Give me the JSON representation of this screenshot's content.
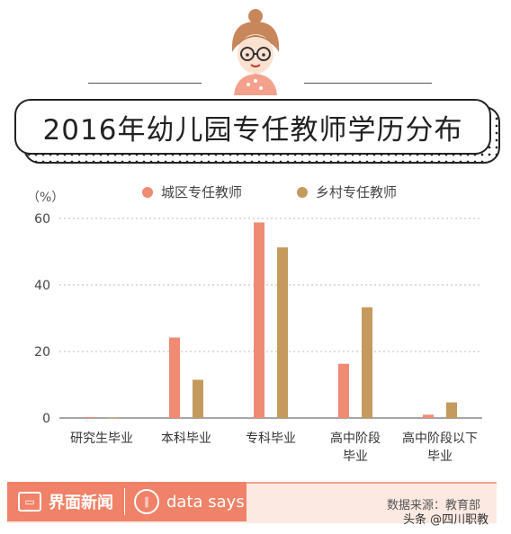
{
  "title": "2016年幼儿园专任教师学历分布",
  "footer": {
    "brand": "界面新闻",
    "data_says": "data says",
    "source": "数据来源：教育部",
    "watermark": "头条 @四川职教"
  },
  "colors": {
    "urban": "#ef8a73",
    "rural": "#c49a5e",
    "brand": "#ef8268"
  },
  "chart_data": {
    "type": "bar",
    "title": "2016年幼儿园专任教师学历分布",
    "ylabel": "（%）",
    "ylim": [
      0,
      60
    ],
    "yticks": [
      0,
      20,
      40,
      60
    ],
    "grid": true,
    "legend_position": "top",
    "categories": [
      [
        "研究生毕业"
      ],
      [
        "本科毕业"
      ],
      [
        "专科毕业"
      ],
      [
        "高中阶段",
        "毕业"
      ],
      [
        "高中阶段以下",
        "毕业"
      ]
    ],
    "series": [
      {
        "name": "城区专任教师",
        "color": "#ef8a73",
        "values": [
          0.3,
          24.2,
          58.8,
          16.3,
          1.0
        ]
      },
      {
        "name": "乡村专任教师",
        "color": "#c49a5e",
        "values": [
          0.1,
          11.5,
          51.3,
          33.3,
          4.7
        ]
      }
    ]
  }
}
